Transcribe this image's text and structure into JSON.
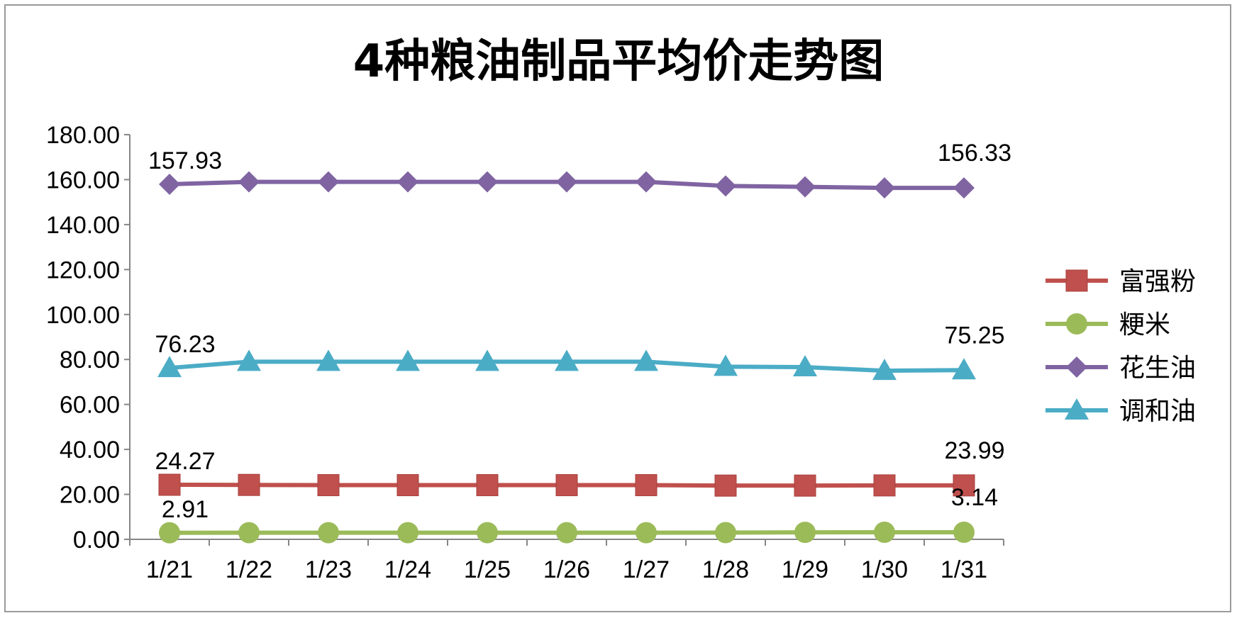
{
  "chart_data": {
    "type": "line",
    "title": "4种粮油制品平均价走势图",
    "categories": [
      "1/21",
      "1/22",
      "1/23",
      "1/24",
      "1/25",
      "1/26",
      "1/27",
      "1/28",
      "1/29",
      "1/30",
      "1/31"
    ],
    "ylim": [
      0,
      180
    ],
    "y_ticks": [
      "0.00",
      "20.00",
      "40.00",
      "60.00",
      "80.00",
      "100.00",
      "120.00",
      "140.00",
      "160.00",
      "180.00"
    ],
    "grid": false,
    "legend_position": "right",
    "series": [
      {
        "name": "富强粉",
        "marker": "square",
        "color": "#C0504D",
        "values": [
          24.27,
          24.2,
          24.1,
          24.1,
          24.1,
          24.1,
          24.1,
          23.9,
          23.9,
          23.99,
          23.99
        ],
        "labels": {
          "first": "24.27",
          "last": "23.99"
        }
      },
      {
        "name": "粳米",
        "marker": "circle",
        "color": "#9BBB59",
        "values": [
          2.91,
          2.95,
          2.95,
          2.95,
          2.95,
          2.95,
          2.95,
          3.0,
          3.1,
          3.14,
          3.14
        ],
        "labels": {
          "first": "2.91",
          "last": "3.14"
        }
      },
      {
        "name": "花生油",
        "marker": "diamond",
        "color": "#8064A2",
        "values": [
          157.93,
          159.0,
          159.0,
          159.0,
          159.0,
          159.0,
          159.0,
          157.2,
          156.8,
          156.33,
          156.33
        ],
        "labels": {
          "first": "157.93",
          "last": "156.33"
        }
      },
      {
        "name": "调和油",
        "marker": "triangle",
        "color": "#4BACC6",
        "values": [
          76.23,
          79.0,
          79.0,
          79.0,
          79.0,
          79.0,
          79.0,
          76.8,
          76.6,
          75.0,
          75.25
        ],
        "labels": {
          "first": "76.23",
          "last": "75.25"
        }
      }
    ]
  }
}
